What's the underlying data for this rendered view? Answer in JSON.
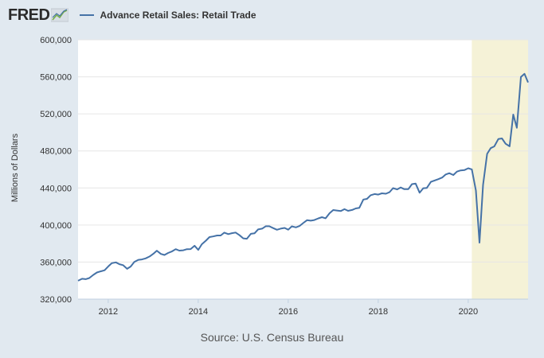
{
  "header": {
    "logo_text": "FRED",
    "logo_icon": "fred-trend-icon",
    "legend_label": "Advance Retail Sales: Retail Trade"
  },
  "source": "Source: U.S. Census Bureau",
  "colors": {
    "background": "#e1e9f0",
    "plot_background": "#ffffff",
    "series": "#4572a7",
    "recession_shade": "#f5f2d7"
  },
  "chart_data": {
    "type": "line",
    "title": "",
    "xlabel": "",
    "ylabel": "Millions of Dollars",
    "x_range": [
      2011.33,
      2021.33
    ],
    "ylim": [
      320000,
      600000
    ],
    "y_ticks": [
      320000,
      360000,
      400000,
      440000,
      480000,
      520000,
      560000,
      600000
    ],
    "y_tick_labels": [
      "320,000",
      "360,000",
      "400,000",
      "440,000",
      "480,000",
      "520,000",
      "560,000",
      "600,000"
    ],
    "x_ticks": [
      2012,
      2014,
      2016,
      2018,
      2020
    ],
    "x_tick_labels": [
      "2012",
      "2014",
      "2016",
      "2018",
      "2020"
    ],
    "grid": true,
    "legend_position": "top-left",
    "shaded_region": {
      "start": 2020.08,
      "end": 2021.33
    },
    "series": [
      {
        "name": "Advance Retail Sales: Retail Trade",
        "x": [
          2011.33,
          2011.42,
          2011.5,
          2011.58,
          2011.67,
          2011.75,
          2011.83,
          2011.92,
          2012.0,
          2012.08,
          2012.17,
          2012.25,
          2012.33,
          2012.42,
          2012.5,
          2012.58,
          2012.67,
          2012.75,
          2012.83,
          2012.92,
          2013.0,
          2013.08,
          2013.17,
          2013.25,
          2013.33,
          2013.42,
          2013.5,
          2013.58,
          2013.67,
          2013.75,
          2013.83,
          2013.92,
          2014.0,
          2014.08,
          2014.17,
          2014.25,
          2014.33,
          2014.42,
          2014.5,
          2014.58,
          2014.67,
          2014.75,
          2014.83,
          2014.92,
          2015.0,
          2015.08,
          2015.17,
          2015.25,
          2015.33,
          2015.42,
          2015.5,
          2015.58,
          2015.67,
          2015.75,
          2015.83,
          2015.92,
          2016.0,
          2016.08,
          2016.17,
          2016.25,
          2016.33,
          2016.42,
          2016.5,
          2016.58,
          2016.67,
          2016.75,
          2016.83,
          2016.92,
          2017.0,
          2017.08,
          2017.17,
          2017.25,
          2017.33,
          2017.42,
          2017.5,
          2017.58,
          2017.67,
          2017.75,
          2017.83,
          2017.92,
          2018.0,
          2018.08,
          2018.17,
          2018.25,
          2018.33,
          2018.42,
          2018.5,
          2018.58,
          2018.67,
          2018.75,
          2018.83,
          2018.92,
          2019.0,
          2019.08,
          2019.17,
          2019.25,
          2019.33,
          2019.42,
          2019.5,
          2019.58,
          2019.67,
          2019.75,
          2019.83,
          2019.92,
          2020.0,
          2020.08,
          2020.17,
          2020.25,
          2020.33,
          2020.42,
          2020.5,
          2020.58,
          2020.67,
          2020.75,
          2020.83,
          2020.92,
          2021.0,
          2021.08,
          2021.17,
          2021.25,
          2021.33
        ],
        "values": [
          339800,
          342000,
          341600,
          342800,
          346200,
          348800,
          350000,
          351200,
          355300,
          358800,
          359700,
          357700,
          356700,
          352700,
          355200,
          360100,
          362400,
          362900,
          364000,
          366000,
          368900,
          372300,
          368800,
          367700,
          369800,
          371600,
          373900,
          372400,
          372700,
          373900,
          374000,
          377600,
          373200,
          379300,
          383100,
          387000,
          387700,
          388700,
          388700,
          391800,
          390200,
          391200,
          391900,
          389000,
          385600,
          385200,
          390500,
          391000,
          395200,
          396100,
          398700,
          398700,
          396600,
          394900,
          396100,
          396900,
          395000,
          398600,
          397500,
          398900,
          402000,
          405300,
          404700,
          405400,
          407200,
          408500,
          407300,
          412800,
          416200,
          415700,
          415200,
          417100,
          415300,
          416300,
          417900,
          418500,
          427500,
          428200,
          432200,
          433500,
          432900,
          434200,
          433800,
          435400,
          439800,
          438400,
          440600,
          438700,
          438800,
          444100,
          444800,
          434900,
          439700,
          440100,
          446600,
          448100,
          449400,
          451200,
          454600,
          456000,
          454000,
          457700,
          459000,
          459400,
          461300,
          460100,
          437300,
          381000,
          443500,
          476800,
          483000,
          484900,
          492900,
          493500,
          487700,
          485000,
          519300,
          505000,
          559800,
          563200,
          554000
        ]
      }
    ]
  }
}
